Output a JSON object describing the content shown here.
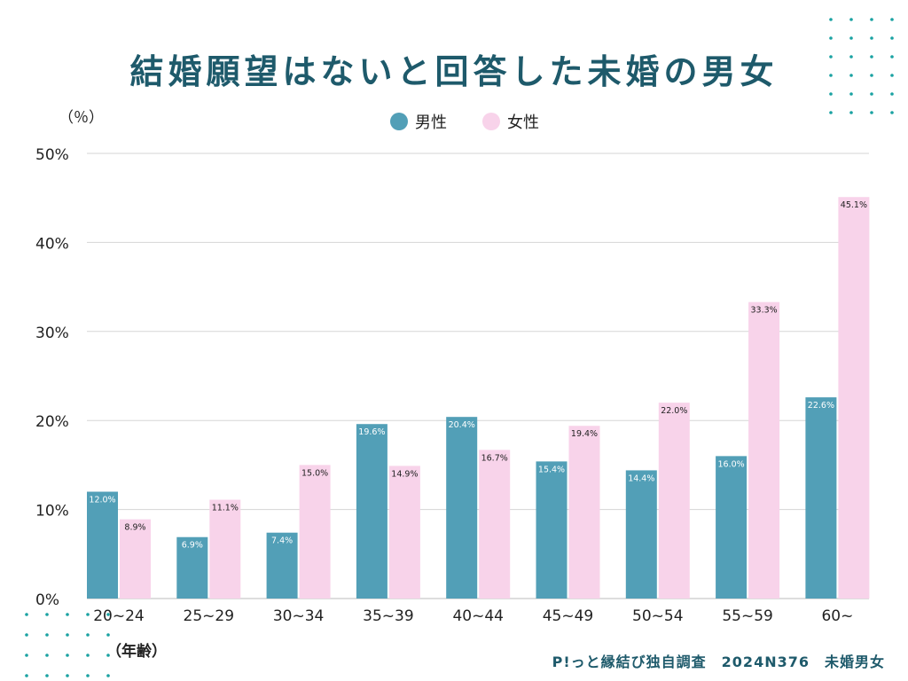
{
  "chart_data": {
    "type": "bar",
    "title": "結婚願望はないと回答した未婚の男女",
    "ylabel": "（％）",
    "xlabel": "（年齢）",
    "ylim": [
      0,
      50
    ],
    "yticks": [
      "0%",
      "10%",
      "20%",
      "30%",
      "40%",
      "50%"
    ],
    "grid": true,
    "legend_position": "top-center",
    "categories": [
      "20~24",
      "25~29",
      "30~34",
      "35~39",
      "40~44",
      "45~49",
      "50~54",
      "55~59",
      "60~"
    ],
    "series": [
      {
        "name": "男性",
        "color": "#529fb7",
        "values": [
          12.0,
          6.9,
          7.4,
          19.6,
          20.4,
          15.4,
          14.4,
          16.0,
          22.6
        ]
      },
      {
        "name": "女性",
        "color": "#f8d3ea",
        "values": [
          8.9,
          11.1,
          15.0,
          14.9,
          16.7,
          19.4,
          22.0,
          33.3,
          45.1
        ]
      }
    ]
  },
  "footer": "P!っと縁結び独自調査　2024N376　未婚男女"
}
